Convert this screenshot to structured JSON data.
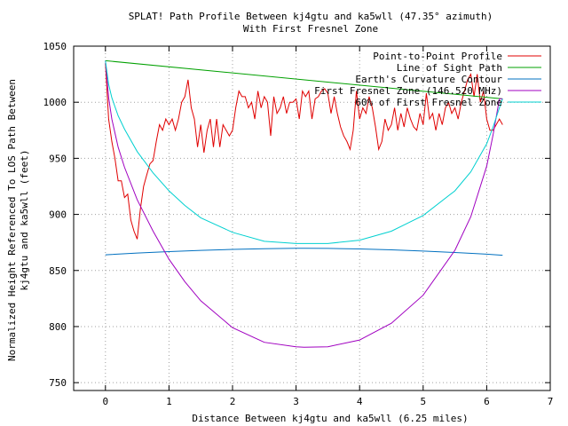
{
  "chart_data": {
    "type": "line",
    "title": "SPLAT! Path Profile Between kj4gtu and ka5wll (47.35° azimuth)",
    "subtitle": "With First Fresnel Zone",
    "xlabel": "Distance Between kj4gtu and ka5wll (6.25 miles)",
    "ylabel_line1": "Normalized Height Referenced To LOS Path Between",
    "ylabel_line2": "kj4gtu and ka5wll (feet)",
    "xlim": [
      -0.5,
      7
    ],
    "ylim": [
      743,
      1050
    ],
    "xticks": [
      0,
      1,
      2,
      3,
      4,
      5,
      6,
      7
    ],
    "yticks": [
      750,
      800,
      850,
      900,
      950,
      1000,
      1050
    ],
    "grid": true,
    "legend_position": "top-right",
    "series": [
      {
        "name": "Point-to-Point Profile",
        "color": "#e00000",
        "x": [
          0,
          0.05,
          0.1,
          0.15,
          0.2,
          0.25,
          0.3,
          0.35,
          0.4,
          0.45,
          0.5,
          0.55,
          0.6,
          0.65,
          0.7,
          0.75,
          0.8,
          0.85,
          0.9,
          0.95,
          1.0,
          1.05,
          1.1,
          1.15,
          1.2,
          1.25,
          1.3,
          1.35,
          1.4,
          1.45,
          1.5,
          1.55,
          1.6,
          1.65,
          1.7,
          1.75,
          1.8,
          1.85,
          1.9,
          1.95,
          2.0,
          2.05,
          2.1,
          2.15,
          2.2,
          2.25,
          2.3,
          2.35,
          2.4,
          2.45,
          2.5,
          2.55,
          2.6,
          2.65,
          2.7,
          2.75,
          2.8,
          2.85,
          2.9,
          2.95,
          3.0,
          3.05,
          3.1,
          3.15,
          3.2,
          3.25,
          3.3,
          3.35,
          3.4,
          3.45,
          3.5,
          3.55,
          3.6,
          3.65,
          3.7,
          3.75,
          3.8,
          3.85,
          3.9,
          3.95,
          4.0,
          4.05,
          4.1,
          4.15,
          4.2,
          4.25,
          4.3,
          4.35,
          4.4,
          4.45,
          4.5,
          4.55,
          4.6,
          4.65,
          4.7,
          4.75,
          4.8,
          4.85,
          4.9,
          4.95,
          5.0,
          5.05,
          5.1,
          5.15,
          5.2,
          5.25,
          5.3,
          5.35,
          5.4,
          5.45,
          5.5,
          5.55,
          5.6,
          5.65,
          5.7,
          5.75,
          5.8,
          5.85,
          5.9,
          5.95,
          6.0,
          6.05,
          6.1,
          6.15,
          6.2,
          6.25
        ],
        "y": [
          1035,
          985,
          965,
          950,
          930,
          930,
          915,
          918,
          895,
          885,
          878,
          905,
          925,
          935,
          945,
          948,
          965,
          980,
          975,
          985,
          980,
          985,
          975,
          985,
          1000,
          1005,
          1020,
          995,
          985,
          960,
          980,
          955,
          975,
          985,
          960,
          985,
          960,
          980,
          975,
          970,
          975,
          995,
          1010,
          1005,
          1005,
          995,
          1000,
          985,
          1010,
          995,
          1005,
          1000,
          970,
          1005,
          990,
          995,
          1005,
          990,
          1000,
          1000,
          1003,
          985,
          1010,
          1005,
          1010,
          985,
          1003,
          1005,
          1010,
          1012,
          1008,
          990,
          1005,
          990,
          978,
          970,
          965,
          958,
          975,
          1010,
          985,
          995,
          990,
          1005,
          995,
          978,
          958,
          965,
          985,
          975,
          980,
          995,
          975,
          990,
          978,
          995,
          985,
          978,
          975,
          990,
          980,
          1008,
          985,
          990,
          975,
          990,
          980,
          995,
          1000,
          990,
          995,
          985,
          1000,
          1010,
          1020,
          1025,
          1005,
          1025,
          1000,
          1010,
          985,
          975,
          975,
          980,
          985,
          980
        ]
      },
      {
        "name": "Line of Sight Path",
        "color": "#00a000",
        "x": [
          0,
          6.25
        ],
        "y": [
          1037,
          1003
        ]
      },
      {
        "name": "Earth's Curvature Contour",
        "color": "#0070c0",
        "x": [
          0,
          0.5,
          1,
          1.5,
          2,
          2.5,
          3,
          3.125,
          3.5,
          4,
          4.5,
          5,
          5.5,
          6,
          6.25
        ],
        "y": [
          864,
          865.6,
          866.8,
          867.9,
          868.8,
          869.4,
          869.8,
          869.8,
          869.7,
          869.2,
          868.4,
          867.3,
          866,
          864.5,
          863.6
        ]
      },
      {
        "name": "First Fresnel Zone (146.520 MHz)",
        "color": "#a000c0",
        "x": [
          0,
          0.05,
          0.1,
          0.2,
          0.3,
          0.5,
          0.75,
          1,
          1.25,
          1.5,
          2,
          2.5,
          3,
          3.125,
          3.5,
          4,
          4.5,
          5,
          5.5,
          5.75,
          6,
          6.1,
          6.2,
          6.25
        ],
        "y": [
          1037,
          1004,
          985,
          960,
          942,
          913,
          885,
          860,
          840,
          823,
          799,
          786,
          782,
          781.5,
          782,
          788,
          803,
          828,
          868,
          898,
          943,
          971,
          1003,
          1003
        ]
      },
      {
        "name": "60% of First Fresnel Zone",
        "color": "#00d0d0",
        "x": [
          0,
          0.05,
          0.1,
          0.2,
          0.3,
          0.5,
          0.75,
          1,
          1.25,
          1.5,
          2,
          2.5,
          3,
          3.5,
          4,
          4.5,
          5,
          5.5,
          5.75,
          6,
          6.1,
          6.2,
          6.25
        ],
        "y": [
          1037,
          1016,
          1004,
          988,
          976,
          956,
          937,
          921,
          908,
          897,
          884,
          876,
          874,
          874,
          877,
          885,
          899,
          921,
          938,
          963,
          978,
          995,
          1003
        ]
      }
    ]
  }
}
